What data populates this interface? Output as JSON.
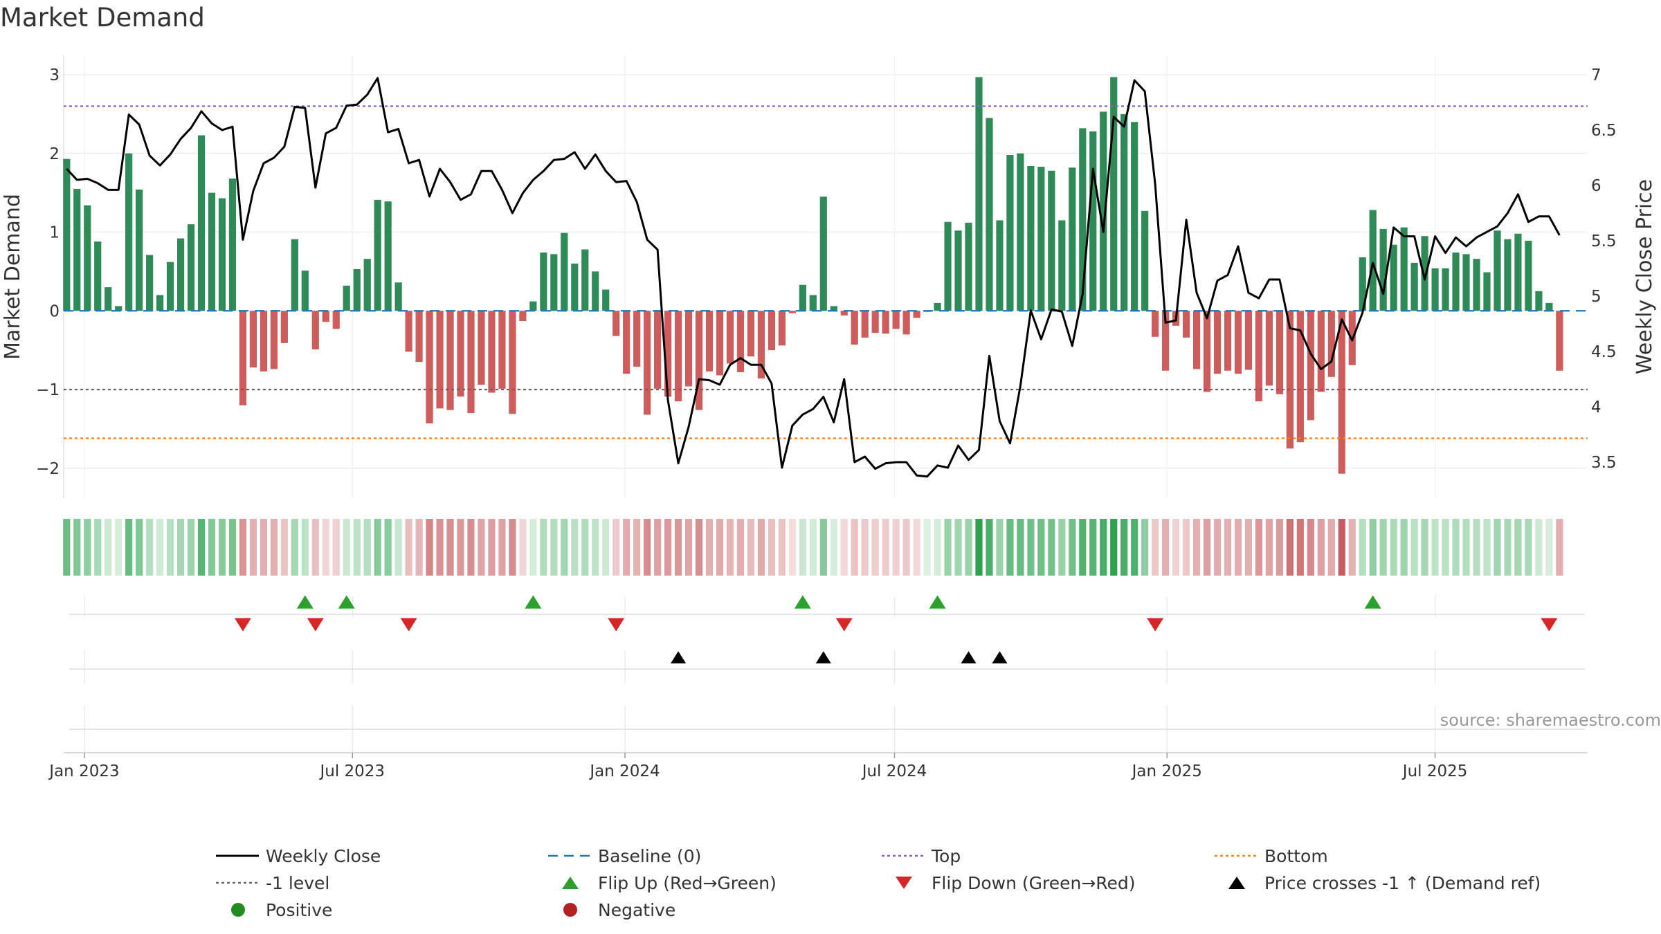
{
  "chart_data": {
    "type": "bar",
    "title": "Market Demand",
    "ylabel": "Market Demand",
    "y2label": "Weekly Close Price",
    "ylim": [
      -2.35,
      3.25
    ],
    "y2lim": [
      3.2,
      7.1
    ],
    "yticks": [
      3,
      2,
      1,
      0,
      -1,
      -2
    ],
    "ytick_labels": [
      "3",
      "2",
      "1",
      "0",
      "−1",
      "−2"
    ],
    "y2ticks": [
      7,
      6.5,
      6,
      5.5,
      5,
      4.5,
      4,
      3.5
    ],
    "y2tick_labels": [
      "7",
      "6.5",
      "6",
      "5.5",
      "5",
      "4.5",
      "4",
      "3.5"
    ],
    "xlim": [
      "2022-12-18",
      "2025-10-12"
    ],
    "xticks": [
      {
        "date": "2023-01-01",
        "label": "Jan 2023"
      },
      {
        "date": "2023-07-01",
        "label": "Jul 2023"
      },
      {
        "date": "2024-01-01",
        "label": "Jan 2024"
      },
      {
        "date": "2024-07-01",
        "label": "Jul 2024"
      },
      {
        "date": "2025-01-01",
        "label": "Jan 2025"
      },
      {
        "date": "2025-07-01",
        "label": "Jul 2025"
      }
    ],
    "start_date": "2022-12-18",
    "week_step_days": 7,
    "series": [
      {
        "name": "Market Demand",
        "values": [
          1.93,
          1.55,
          1.34,
          0.88,
          0.3,
          0.06,
          2.0,
          1.54,
          0.71,
          0.2,
          0.62,
          0.92,
          1.1,
          2.23,
          1.5,
          1.43,
          1.68,
          -1.2,
          -0.72,
          -0.77,
          -0.74,
          -0.41,
          0.91,
          0.51,
          -0.49,
          -0.14,
          -0.23,
          0.32,
          0.53,
          0.66,
          1.41,
          1.39,
          0.36,
          -0.52,
          -0.65,
          -1.43,
          -1.24,
          -1.26,
          -1.09,
          -1.3,
          -0.94,
          -1.04,
          -0.99,
          -1.31,
          -0.13,
          0.12,
          0.74,
          0.72,
          0.99,
          0.6,
          0.78,
          0.5,
          0.27,
          -0.32,
          -0.8,
          -0.71,
          -1.32,
          -0.99,
          -1.09,
          -1.15,
          -0.96,
          -1.26,
          -0.77,
          -0.82,
          -0.67,
          -0.78,
          -0.58,
          -0.86,
          -0.5,
          -0.44,
          -0.03,
          0.33,
          0.2,
          1.45,
          0.06,
          -0.06,
          -0.43,
          -0.34,
          -0.28,
          -0.29,
          -0.23,
          -0.3,
          -0.09,
          0.0,
          0.1,
          1.13,
          1.02,
          1.12,
          2.97,
          2.45,
          1.15,
          1.98,
          2.0,
          1.84,
          1.83,
          1.78,
          1.15,
          1.82,
          2.32,
          2.28,
          2.53,
          2.97,
          2.5,
          2.4,
          1.27,
          -0.33,
          -0.76,
          -0.19,
          -0.34,
          -0.74,
          -1.03,
          -0.8,
          -0.76,
          -0.8,
          -0.75,
          -1.15,
          -0.95,
          -1.06,
          -1.75,
          -1.67,
          -1.39,
          -1.03,
          -0.84,
          -2.07,
          -0.69,
          0.68,
          1.28,
          1.04,
          0.84,
          1.06,
          0.61,
          0.95,
          0.54,
          0.54,
          0.74,
          0.72,
          0.66,
          0.49,
          1.02,
          0.91,
          0.98,
          0.89,
          0.25,
          0.1,
          -0.76
        ]
      },
      {
        "name": "Weekly Close",
        "values": [
          6.15,
          6.05,
          6.06,
          6.02,
          5.96,
          5.96,
          6.64,
          6.55,
          6.27,
          6.18,
          6.28,
          6.42,
          6.52,
          6.67,
          6.56,
          6.5,
          6.53,
          5.51,
          5.95,
          6.2,
          6.25,
          6.35,
          6.71,
          6.7,
          5.98,
          6.47,
          6.52,
          6.72,
          6.73,
          6.82,
          6.97,
          6.48,
          6.51,
          6.2,
          6.23,
          5.9,
          6.15,
          6.03,
          5.87,
          5.92,
          6.13,
          6.13,
          5.96,
          5.75,
          5.93,
          6.05,
          6.13,
          6.23,
          6.24,
          6.3,
          6.15,
          6.28,
          6.13,
          6.03,
          6.04,
          5.85,
          5.51,
          5.42,
          4.06,
          3.49,
          3.82,
          4.25,
          4.24,
          4.2,
          4.38,
          4.44,
          4.38,
          4.38,
          4.21,
          3.45,
          3.83,
          3.93,
          3.98,
          4.09,
          3.86,
          4.25,
          3.5,
          3.55,
          3.44,
          3.49,
          3.5,
          3.5,
          3.38,
          3.37,
          3.47,
          3.45,
          3.65,
          3.52,
          3.61,
          4.46,
          3.87,
          3.67,
          4.19,
          4.87,
          4.61,
          4.88,
          4.86,
          4.55,
          5.02,
          6.15,
          5.58,
          6.62,
          6.53,
          6.95,
          6.85,
          6.01,
          4.76,
          4.78,
          5.69,
          5.03,
          4.8,
          5.14,
          5.19,
          5.45,
          5.03,
          4.98,
          5.15,
          5.15,
          4.71,
          4.69,
          4.48,
          4.34,
          4.41,
          4.79,
          4.6,
          4.85,
          5.3,
          5.02,
          5.62,
          5.54,
          5.54,
          5.15,
          5.54,
          5.39,
          5.53,
          5.45,
          5.53,
          5.58,
          5.63,
          5.75,
          5.92,
          5.67,
          5.72,
          5.72,
          5.55
        ]
      }
    ],
    "lines": [
      {
        "name": "Baseline (0)",
        "value": 0,
        "color": "#1f77b4",
        "style": "dashed"
      },
      {
        "name": "Top",
        "value": 2.6,
        "color": "#7b68c8",
        "style": "dotted"
      },
      {
        "name": "-1 level",
        "value": -1,
        "color": "#666666",
        "style": "dotted"
      },
      {
        "name": "Bottom",
        "value": -1.62,
        "color": "#ff7f0e",
        "style": "dotted"
      }
    ],
    "flip_up_weeks": [
      23,
      27,
      45,
      71,
      84,
      126
    ],
    "flip_down_weeks": [
      17,
      24,
      33,
      53,
      75,
      105,
      143
    ],
    "price_cross_weeks": [
      59,
      73,
      87,
      90
    ],
    "source_text": "source: sharemaestro.com",
    "legend": [
      {
        "label": "Weekly Close",
        "marker": "line",
        "color": "#000000"
      },
      {
        "label": "Baseline (0)",
        "marker": "dash",
        "color": "#1f77b4"
      },
      {
        "label": "Top",
        "marker": "dot",
        "color": "#7b68c8"
      },
      {
        "label": "Bottom",
        "marker": "dot",
        "color": "#e08a1e"
      },
      {
        "label": "-1 level",
        "marker": "dot",
        "color": "#666666"
      },
      {
        "label": "Flip Up (Red→Green)",
        "marker": "triangle-up",
        "color": "#2ca02c"
      },
      {
        "label": "Flip Down (Green→Red)",
        "marker": "triangle-down",
        "color": "#d62728"
      },
      {
        "label": "Price crosses -1 ↑ (Demand ref)",
        "marker": "triangle-up",
        "color": "#000000"
      },
      {
        "label": "Positive",
        "marker": "circle",
        "color": "#228b22"
      },
      {
        "label": "Negative",
        "marker": "circle",
        "color": "#b22222"
      }
    ],
    "colors": {
      "positive_bar": "#2e8b57",
      "negative_bar": "#cd5c5c",
      "price_line": "#000000"
    }
  }
}
